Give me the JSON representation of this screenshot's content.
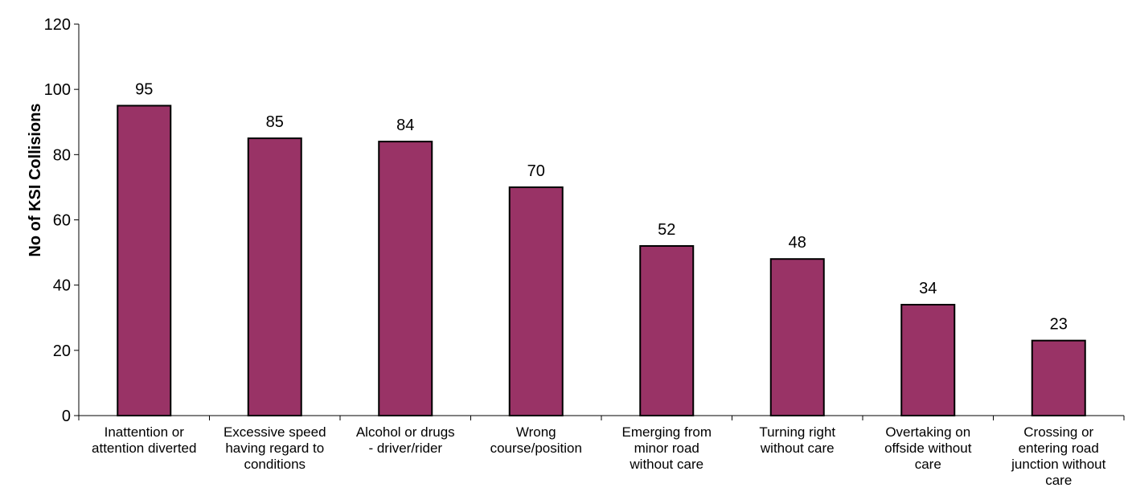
{
  "chart_data": {
    "type": "bar",
    "categories": [
      [
        "Inattention or",
        "attention diverted"
      ],
      [
        "Excessive speed",
        "having regard to",
        "conditions"
      ],
      [
        "Alcohol or drugs",
        "- driver/rider"
      ],
      [
        "Wrong",
        "course/position"
      ],
      [
        "Emerging from",
        "minor road",
        "without care"
      ],
      [
        "Turning right",
        "without care"
      ],
      [
        "Overtaking on",
        "offside without",
        "care"
      ],
      [
        "Crossing or",
        "entering road",
        "junction without",
        "care"
      ]
    ],
    "values": [
      95,
      85,
      84,
      70,
      52,
      48,
      34,
      23
    ],
    "data_labels": [
      "95",
      "85",
      "84",
      "70",
      "52",
      "48",
      "34",
      "23"
    ],
    "ylabel": "No of KSI Collisions",
    "ylim": [
      0,
      120
    ],
    "yticks": [
      0,
      20,
      40,
      60,
      80,
      100,
      120
    ],
    "ytick_labels": [
      "0",
      "20",
      "40",
      "60",
      "80",
      "100",
      "120"
    ],
    "grid": false,
    "bar_color": "#993366",
    "bar_edge_color": "#000000"
  }
}
